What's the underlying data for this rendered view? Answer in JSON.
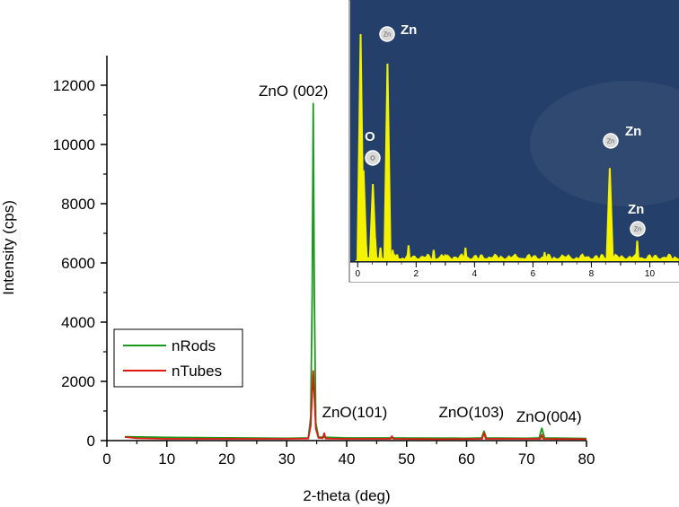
{
  "chart_data": [
    {
      "type": "line",
      "title": "",
      "xlabel": "2-theta (deg)",
      "ylabel": "Intensity (cps)",
      "xlim": [
        0,
        80
      ],
      "ylim": [
        0,
        13000
      ],
      "xticks": [
        0,
        10,
        20,
        30,
        40,
        50,
        60,
        70,
        80
      ],
      "yticks": [
        0,
        2000,
        4000,
        6000,
        8000,
        10000,
        12000
      ],
      "legend_position": "bottom-left",
      "series": [
        {
          "name": "nRods",
          "color": "#1a9a1a",
          "points": [
            [
              3,
              130
            ],
            [
              10,
              110
            ],
            [
              20,
              95
            ],
            [
              30,
              80
            ],
            [
              33.6,
              90
            ],
            [
              34.0,
              800
            ],
            [
              34.25,
              5000
            ],
            [
              34.42,
              11380
            ],
            [
              34.6,
              5000
            ],
            [
              34.85,
              600
            ],
            [
              35.3,
              120
            ],
            [
              40,
              90
            ],
            [
              47.5,
              90
            ],
            [
              50,
              85
            ],
            [
              60,
              80
            ],
            [
              62.5,
              90
            ],
            [
              62.9,
              320
            ],
            [
              63.3,
              90
            ],
            [
              70,
              80
            ],
            [
              72.1,
              90
            ],
            [
              72.55,
              420
            ],
            [
              73.0,
              90
            ],
            [
              80,
              70
            ]
          ]
        },
        {
          "name": "nTubes",
          "color": "#e0190f",
          "points": [
            [
              3,
              120
            ],
            [
              5,
              80
            ],
            [
              10,
              60
            ],
            [
              20,
              60
            ],
            [
              30,
              60
            ],
            [
              33.6,
              70
            ],
            [
              34.0,
              500
            ],
            [
              34.42,
              2350
            ],
            [
              34.85,
              400
            ],
            [
              35.3,
              90
            ],
            [
              36.0,
              80
            ],
            [
              36.25,
              250
            ],
            [
              36.5,
              70
            ],
            [
              40,
              60
            ],
            [
              47.3,
              60
            ],
            [
              47.55,
              150
            ],
            [
              47.8,
              60
            ],
            [
              56,
              50
            ],
            [
              62.6,
              60
            ],
            [
              62.9,
              260
            ],
            [
              63.2,
              60
            ],
            [
              72.3,
              60
            ],
            [
              72.55,
              200
            ],
            [
              72.8,
              60
            ],
            [
              80,
              50
            ]
          ]
        }
      ],
      "annotations": [
        {
          "text": "ZnO (002)",
          "x": 34.42
        },
        {
          "text": "ZnO(101)",
          "x": 36.25
        },
        {
          "text": "ZnO(103)",
          "x": 62.9
        },
        {
          "text": "ZnO(004)",
          "x": 72.55
        }
      ]
    },
    {
      "type": "bar",
      "title": "",
      "xlabel": "",
      "ylabel": "",
      "xlim": [
        -0.1,
        11
      ],
      "xticks": [
        0,
        2,
        4,
        6,
        8,
        10
      ],
      "ylim": [
        0,
        100
      ],
      "background_color": "#24406a",
      "bar_color": "#f5f200",
      "peaks": [
        {
          "x": 0.1,
          "h": 100
        },
        {
          "x": 0.2,
          "h": 40
        },
        {
          "x": 0.28,
          "h": 8
        },
        {
          "x": 0.52,
          "h": 34
        },
        {
          "x": 0.6,
          "h": 10
        },
        {
          "x": 0.78,
          "h": 6
        },
        {
          "x": 1.02,
          "h": 87
        },
        {
          "x": 1.2,
          "h": 5
        },
        {
          "x": 1.35,
          "h": 3
        },
        {
          "x": 1.74,
          "h": 7
        },
        {
          "x": 2.3,
          "h": 2
        },
        {
          "x": 2.6,
          "h": 5
        },
        {
          "x": 3.0,
          "h": 3
        },
        {
          "x": 3.3,
          "h": 2
        },
        {
          "x": 3.69,
          "h": 6
        },
        {
          "x": 4.5,
          "h": 2
        },
        {
          "x": 5.4,
          "h": 3
        },
        {
          "x": 6.0,
          "h": 2
        },
        {
          "x": 6.4,
          "h": 4
        },
        {
          "x": 7.0,
          "h": 2
        },
        {
          "x": 8.63,
          "h": 41
        },
        {
          "x": 9.0,
          "h": 2
        },
        {
          "x": 9.57,
          "h": 9
        },
        {
          "x": 10.5,
          "h": 1
        }
      ],
      "element_labels": [
        {
          "text": "Zn",
          "badge": "Zn",
          "x": 1.02
        },
        {
          "text": "O",
          "badge": "O",
          "x": 0.52
        },
        {
          "text": "Zn",
          "badge": "Zn",
          "x": 8.63
        },
        {
          "text": "Zn",
          "badge": "Zn",
          "x": 9.57
        }
      ]
    }
  ]
}
